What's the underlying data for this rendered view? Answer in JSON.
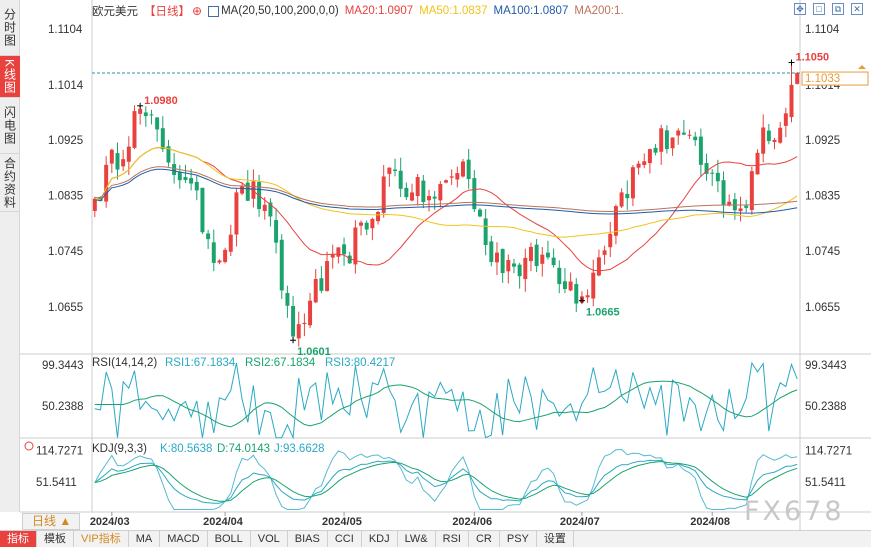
{
  "sidebar": {
    "tabs": [
      {
        "label": "分时图",
        "active": false
      },
      {
        "label": "K线图",
        "active": true
      },
      {
        "label": "闪电图",
        "active": false
      },
      {
        "label": "合约资料",
        "active": false
      }
    ]
  },
  "header": {
    "symbol": "欧元美元",
    "period_tag": "【日线】",
    "ma_label": "MA(20,50,100,200,0,0)",
    "ma20": "MA20:1.0907",
    "ma50": "MA50:1.0837",
    "ma100": "MA100:1.0807",
    "ma200": "MA200:1."
  },
  "window_controls": [
    "move-icon",
    "maximize-icon",
    "restore-icon",
    "close-icon"
  ],
  "colors": {
    "up": "#e8413e",
    "down": "#1aa36c",
    "ma20": "#e8413e",
    "ma50": "#f0c419",
    "ma100": "#1f5ca8",
    "ma200": "#b9735a",
    "rsi": "#2ba9c4",
    "kdj": "#2ba9c4",
    "last_price_line": "#2d8cbe",
    "axis_text": "#333333"
  },
  "chart_data": [
    {
      "type": "candlestick",
      "title": "欧元美元 日线",
      "y_ticks": [
        "1.1104",
        "1.1014",
        "1.0925",
        "1.0835",
        "1.0745",
        "1.0655"
      ],
      "y_tick_values": [
        1.1104,
        1.1014,
        1.0925,
        1.0835,
        1.0745,
        1.0655
      ],
      "ylim": [
        1.0582,
        1.1122
      ],
      "x_ticks": [
        "2024/03",
        "2024/04",
        "2024/05",
        "2024/06",
        "2024/07",
        "2024/08"
      ],
      "x_tick_index": [
        3,
        23,
        44,
        67,
        86,
        109
      ],
      "last_price": 1.1033,
      "last_price_label": "1.1033",
      "annotations": [
        {
          "text": "1.0980",
          "index": 8,
          "value": 1.098,
          "kind": "high"
        },
        {
          "text": "1.0601",
          "index": 35,
          "value": 1.0601,
          "kind": "low"
        },
        {
          "text": "1.0665",
          "index": 86,
          "value": 1.0665,
          "kind": "low"
        },
        {
          "text": "1.1050",
          "index": 123,
          "value": 1.105,
          "kind": "high"
        }
      ],
      "ma_legend": [
        "MA20",
        "MA50",
        "MA100",
        "MA200"
      ],
      "anchors": [
        [
          0,
          1.083
        ],
        [
          8,
          1.0975
        ],
        [
          12,
          1.091
        ],
        [
          16,
          1.086
        ],
        [
          22,
          1.073
        ],
        [
          26,
          1.085
        ],
        [
          30,
          1.082
        ],
        [
          35,
          1.0607
        ],
        [
          38,
          1.0665
        ],
        [
          44,
          1.074
        ],
        [
          48,
          1.078
        ],
        [
          52,
          1.088
        ],
        [
          56,
          1.084
        ],
        [
          60,
          1.083
        ],
        [
          65,
          1.089
        ],
        [
          69,
          1.0755
        ],
        [
          74,
          1.072
        ],
        [
          80,
          1.0735
        ],
        [
          86,
          1.0672
        ],
        [
          89,
          1.0735
        ],
        [
          93,
          1.084
        ],
        [
          98,
          1.091
        ],
        [
          103,
          1.094
        ],
        [
          108,
          1.087
        ],
        [
          112,
          1.0825
        ],
        [
          115,
          1.0815
        ],
        [
          118,
          1.0945
        ],
        [
          120,
          1.0925
        ],
        [
          124,
          1.1033
        ]
      ]
    },
    {
      "type": "line",
      "title": "RSI(14,14,2)",
      "legend": [
        "RSI1:67.1834",
        "RSI2:67.1834",
        "RSI3:80.4217"
      ],
      "y_ticks": [
        "99.3443",
        "50.2388"
      ],
      "y_tick_values": [
        99.3443,
        50.2388
      ],
      "ylim": [
        14,
        108
      ]
    },
    {
      "type": "line",
      "title": "KDJ(9,3,3)",
      "legend": [
        "K:80.5638",
        "D:74.0143",
        "J:93.6628"
      ],
      "y_ticks": [
        "114.7271",
        "51.5411"
      ],
      "y_tick_values": [
        114.7271,
        51.5411
      ],
      "ylim": [
        -5,
        128
      ]
    }
  ],
  "bottom_tabs": [
    {
      "label": "指标",
      "active": true
    },
    {
      "label": "模板",
      "active": false
    },
    {
      "label": "VIP指标",
      "active": false,
      "vip": true
    },
    {
      "label": "MA",
      "active": false
    },
    {
      "label": "MACD",
      "active": false
    },
    {
      "label": "BOLL",
      "active": false
    },
    {
      "label": "VOL",
      "active": false
    },
    {
      "label": "BIAS",
      "active": false
    },
    {
      "label": "CCI",
      "active": false
    },
    {
      "label": "KDJ",
      "active": false
    },
    {
      "label": "LW&",
      "active": false
    },
    {
      "label": "RSI",
      "active": false
    },
    {
      "label": "CR",
      "active": false
    },
    {
      "label": "PSY",
      "active": false
    },
    {
      "label": "设置",
      "active": false
    }
  ],
  "period_selector": "日线 ▲",
  "watermark": "FX678"
}
